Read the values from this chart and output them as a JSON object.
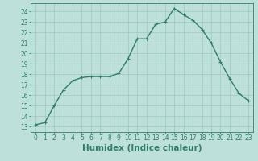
{
  "x": [
    0,
    1,
    2,
    3,
    4,
    5,
    6,
    7,
    8,
    9,
    10,
    11,
    12,
    13,
    14,
    15,
    16,
    17,
    18,
    19,
    20,
    21,
    22,
    23
  ],
  "y": [
    13.2,
    13.4,
    15.0,
    16.5,
    17.4,
    17.7,
    17.8,
    17.8,
    17.8,
    18.1,
    19.5,
    21.4,
    21.4,
    22.8,
    23.0,
    24.3,
    23.7,
    23.2,
    22.3,
    21.0,
    19.2,
    17.6,
    16.2,
    15.5
  ],
  "line_color": "#2e7d6e",
  "marker": "+",
  "bg_color": "#bde0da",
  "grid_color": "#a0c8c0",
  "xlabel": "Humidex (Indice chaleur)",
  "xlim": [
    -0.5,
    23.5
  ],
  "ylim": [
    12.5,
    24.8
  ],
  "yticks": [
    13,
    14,
    15,
    16,
    17,
    18,
    19,
    20,
    21,
    22,
    23,
    24
  ],
  "xticks": [
    0,
    1,
    2,
    3,
    4,
    5,
    6,
    7,
    8,
    9,
    10,
    11,
    12,
    13,
    14,
    15,
    16,
    17,
    18,
    19,
    20,
    21,
    22,
    23
  ],
  "tick_fontsize": 5.5,
  "xlabel_fontsize": 7.5
}
